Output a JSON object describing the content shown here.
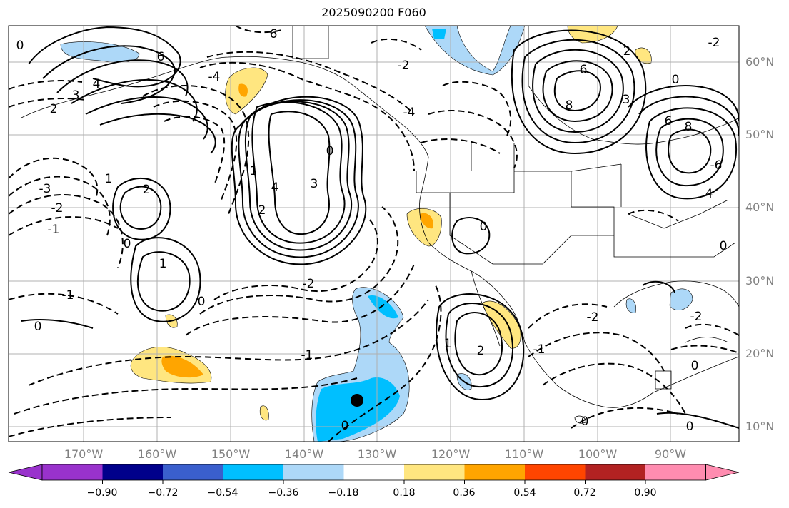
{
  "title": "2025090200 F060",
  "lat_labels": [
    "60°N",
    "50°N",
    "40°N",
    "30°N",
    "20°N",
    "10°N"
  ],
  "lon_labels": [
    "170°W",
    "160°W",
    "150°W",
    "140°W",
    "130°W",
    "120°W",
    "110°W",
    "100°W",
    "90°W"
  ],
  "colorbar": {
    "ticks": [
      "−0.90",
      "−0.72",
      "−0.54",
      "−0.36",
      "−0.18",
      "0.18",
      "0.36",
      "0.54",
      "0.72",
      "0.90"
    ],
    "colors": [
      "#9932cc",
      "#00008b",
      "#3a5fcd",
      "#00bfff",
      "#add8f8",
      "#ffffff",
      "#ffe680",
      "#ffa500",
      "#ff4500",
      "#b22222",
      "#ff8cb0"
    ]
  },
  "contour_labels": [
    "6",
    "6",
    "4",
    "3",
    "2",
    "0",
    "-3",
    "-2",
    "-1",
    "0",
    "-1",
    "2",
    "1",
    "0",
    "1",
    "0",
    "4",
    "3",
    "2",
    "1",
    "0",
    "-2",
    "-1",
    "-2",
    "-4",
    "-4",
    "0",
    "0",
    "2",
    "1",
    "-1",
    "-2",
    "6",
    "8",
    "3",
    "0",
    "6",
    "8",
    "4",
    "2",
    "0",
    "-2",
    "0",
    "-2",
    "0",
    "0",
    "-6"
  ],
  "colors": {
    "grid": "#b0b0b0",
    "axis": "#000000",
    "tick_label": "#808080",
    "marker": "#000000"
  }
}
